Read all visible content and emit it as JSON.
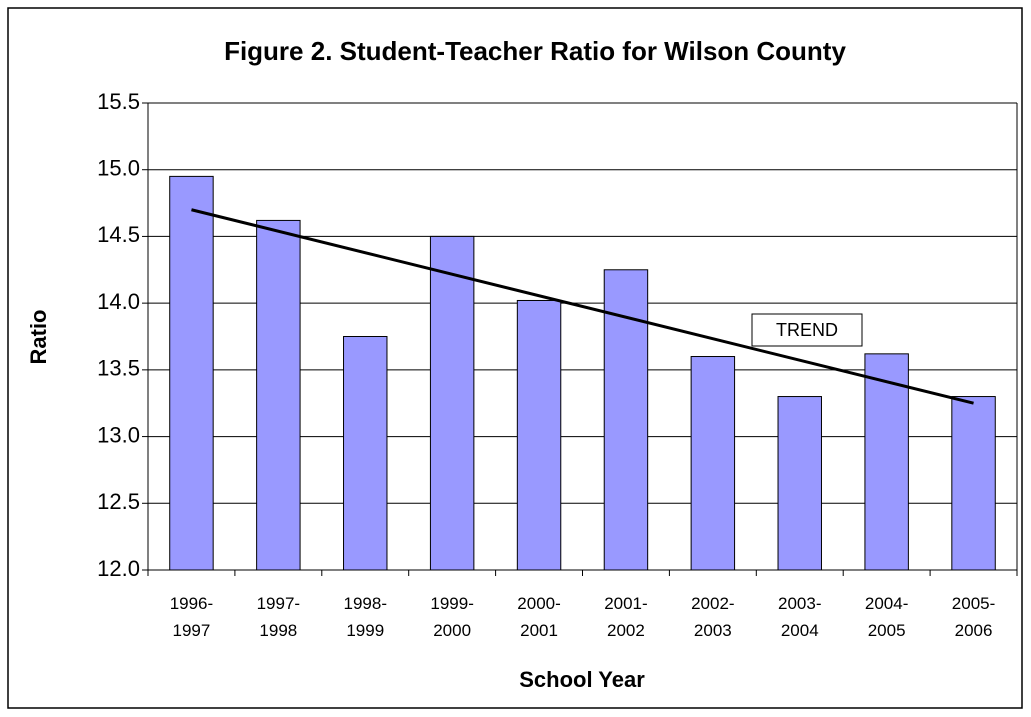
{
  "chart_data": {
    "type": "bar",
    "title": "Figure 2. Student-Teacher Ratio for Wilson County",
    "y_label": "Ratio",
    "x_label": "School Year",
    "categories": [
      "1996-\n1997",
      "1997-\n1998",
      "1998-\n1999",
      "1999-\n2000",
      "2000-\n2001",
      "2001-\n2002",
      "2002-\n2003",
      "2003-\n2004",
      "2004-\n2005",
      "2005-\n2006"
    ],
    "values": [
      14.95,
      14.62,
      13.75,
      14.5,
      14.02,
      14.25,
      13.6,
      13.3,
      13.62,
      13.3
    ],
    "color": "#9999ff",
    "trend": {
      "label": "TREND",
      "values": [
        14.7,
        13.25
      ],
      "color": "#000000"
    },
    "ylim": [
      12,
      15.5
    ],
    "yticks": [
      {
        "value": 12,
        "label": "12.0"
      },
      12.5,
      {
        "value": 13,
        "label": "13.0"
      },
      13.5,
      {
        "value": 14,
        "label": "14.0"
      },
      14.5,
      {
        "value": 15,
        "label": "15.0"
      },
      15.5
    ],
    "grid": true
  }
}
